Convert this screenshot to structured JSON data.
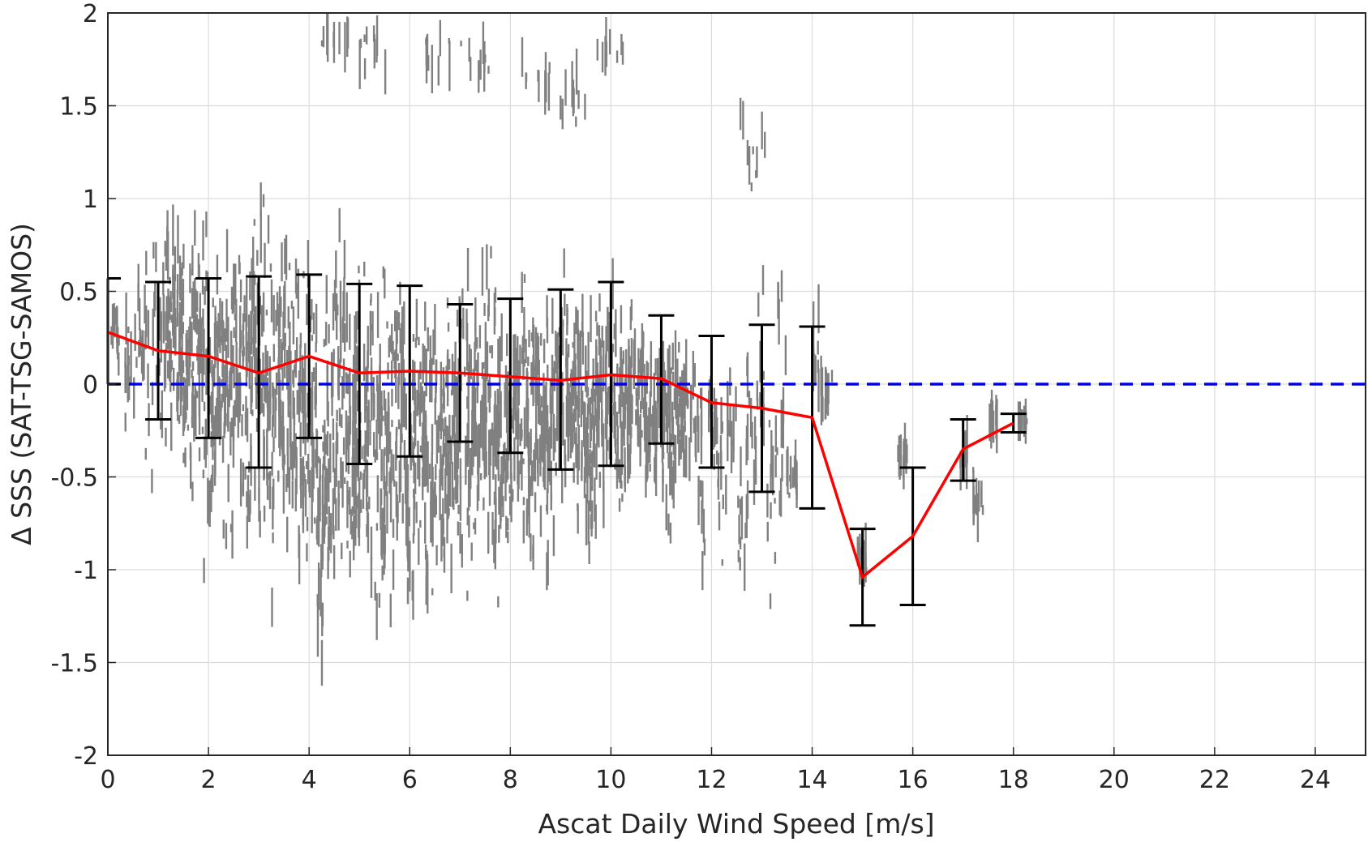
{
  "chart_data": {
    "type": "scatter",
    "title": "",
    "xlabel": "Ascat Daily Wind Speed [m/s]",
    "ylabel": "Δ SSS (SAT-TSG-SAMOS)",
    "xlim": [
      0,
      25
    ],
    "ylim": [
      -2,
      2
    ],
    "xticks": [
      0,
      2,
      4,
      6,
      8,
      10,
      12,
      14,
      16,
      18,
      20,
      22,
      24
    ],
    "yticks": [
      -2,
      -1.5,
      -1,
      -0.5,
      0,
      0.5,
      1,
      1.5,
      2
    ],
    "xtick_labels": [
      "0",
      "2",
      "4",
      "6",
      "8",
      "10",
      "12",
      "14",
      "16",
      "18",
      "20",
      "22",
      "24"
    ],
    "ytick_labels": [
      "-2",
      "-1.5",
      "-1",
      "-0.5",
      "0",
      "0.5",
      "1",
      "1.5",
      "2"
    ],
    "grid": true,
    "legend": "none",
    "zero_line": {
      "y": 0,
      "color": "#0000e6",
      "style": "dashed"
    },
    "scatter_color": "#808080",
    "mean_line_color": "#ff0000",
    "errorbar_color": "#000000",
    "binned_stats": {
      "x": [
        0,
        1,
        2,
        3,
        4,
        5,
        6,
        7,
        8,
        9,
        10,
        11,
        12,
        13,
        14,
        15,
        16,
        17,
        18
      ],
      "mean": [
        0.28,
        0.18,
        0.15,
        0.06,
        0.15,
        0.06,
        0.07,
        0.06,
        0.04,
        0.02,
        0.05,
        0.03,
        -0.1,
        -0.13,
        -0.18,
        -1.04,
        -0.82,
        -0.35,
        -0.21
      ],
      "upper": [
        0.57,
        0.55,
        0.57,
        0.58,
        0.59,
        0.54,
        0.53,
        0.43,
        0.46,
        0.51,
        0.55,
        0.37,
        0.26,
        0.32,
        0.31,
        -0.78,
        -0.45,
        -0.19,
        -0.16
      ],
      "lower": [
        0.0,
        -0.19,
        -0.29,
        -0.45,
        -0.29,
        -0.43,
        -0.39,
        -0.31,
        -0.37,
        -0.46,
        -0.44,
        -0.32,
        -0.45,
        -0.58,
        -0.67,
        -1.3,
        -1.19,
        -0.52,
        -0.26
      ]
    },
    "scatter_columns": [
      [
        0.15,
        0.0,
        0.5
      ],
      [
        0.4,
        -0.5,
        0.6
      ],
      [
        0.6,
        -0.2,
        0.8
      ],
      [
        0.8,
        -1.0,
        1.0
      ],
      [
        1.0,
        -0.4,
        0.9
      ],
      [
        1.2,
        -0.5,
        1.2
      ],
      [
        1.4,
        -0.6,
        1.1
      ],
      [
        1.6,
        -0.8,
        1.0
      ],
      [
        1.8,
        -0.7,
        1.1
      ],
      [
        2.0,
        -1.2,
        1.0
      ],
      [
        2.2,
        -0.9,
        1.1
      ],
      [
        2.4,
        -1.1,
        0.9
      ],
      [
        2.6,
        -0.8,
        1.0
      ],
      [
        2.8,
        -1.3,
        1.3
      ],
      [
        3.0,
        -1.0,
        1.5
      ],
      [
        3.2,
        -1.4,
        1.0
      ],
      [
        3.4,
        -1.1,
        0.9
      ],
      [
        3.6,
        -1.2,
        1.0
      ],
      [
        3.8,
        -1.5,
        0.9
      ],
      [
        4.0,
        -1.3,
        1.0
      ],
      [
        4.2,
        -1.9,
        0.9
      ],
      [
        4.4,
        -1.4,
        0.8
      ],
      [
        4.6,
        -1.2,
        1.0
      ],
      [
        4.8,
        -1.5,
        0.9
      ],
      [
        5.0,
        -1.1,
        0.8
      ],
      [
        5.2,
        -1.3,
        0.7
      ],
      [
        5.4,
        -1.5,
        0.8
      ],
      [
        5.6,
        -1.4,
        0.9
      ],
      [
        5.8,
        -1.2,
        1.0
      ],
      [
        6.0,
        -1.5,
        0.7
      ],
      [
        6.2,
        -1.3,
        0.8
      ],
      [
        6.4,
        -1.8,
        0.9
      ],
      [
        6.6,
        -1.5,
        0.8
      ],
      [
        6.8,
        -1.3,
        0.7
      ],
      [
        7.0,
        -1.2,
        0.8
      ],
      [
        7.2,
        -1.4,
        0.7
      ],
      [
        7.4,
        -1.0,
        0.8
      ],
      [
        7.6,
        -1.2,
        0.9
      ],
      [
        7.8,
        -1.5,
        0.8
      ],
      [
        8.0,
        -1.1,
        0.7
      ],
      [
        8.2,
        -1.0,
        0.7
      ],
      [
        8.4,
        -1.2,
        0.8
      ],
      [
        8.6,
        -0.9,
        0.6
      ],
      [
        8.8,
        -1.3,
        0.7
      ],
      [
        9.0,
        -1.0,
        0.7
      ],
      [
        9.2,
        -0.8,
        0.6
      ],
      [
        9.4,
        -0.9,
        0.7
      ],
      [
        9.6,
        -1.2,
        0.5
      ],
      [
        9.8,
        -0.8,
        0.6
      ],
      [
        10.0,
        -0.7,
        0.7
      ],
      [
        10.2,
        -0.9,
        0.5
      ],
      [
        10.4,
        -0.8,
        0.6
      ],
      [
        10.6,
        -0.7,
        0.5
      ],
      [
        10.8,
        -0.9,
        0.4
      ],
      [
        11.0,
        -0.6,
        0.4
      ],
      [
        11.2,
        -1.0,
        0.5
      ],
      [
        11.4,
        -0.6,
        0.3
      ],
      [
        11.6,
        -0.7,
        0.3
      ],
      [
        11.8,
        -1.2,
        0.3
      ],
      [
        12.0,
        -0.6,
        0.2
      ],
      [
        12.2,
        -1.3,
        0.2
      ],
      [
        12.4,
        -0.7,
        0.3
      ],
      [
        12.6,
        -1.4,
        0.2
      ],
      [
        12.8,
        -0.9,
        0.5
      ],
      [
        13.0,
        -0.8,
        0.8
      ],
      [
        13.2,
        -1.3,
        0.2
      ],
      [
        13.4,
        -1.0,
        0.9
      ],
      [
        13.6,
        -0.7,
        -0.3
      ],
      [
        14.1,
        -0.3,
        0.5
      ],
      [
        14.3,
        -0.2,
        0.1
      ],
      [
        15.0,
        -1.1,
        -0.8
      ],
      [
        15.8,
        -0.5,
        -0.3
      ],
      [
        17.0,
        -0.5,
        -0.2
      ],
      [
        17.3,
        -0.8,
        -0.4
      ],
      [
        17.6,
        -0.3,
        -0.1
      ],
      [
        18.2,
        -0.2,
        -0.2
      ]
    ],
    "scatter_outlier_clusters": [
      [
        4.5,
        1.7,
        2.0
      ],
      [
        5.3,
        1.6,
        2.0
      ],
      [
        6.5,
        1.5,
        2.0
      ],
      [
        7.3,
        1.6,
        1.9
      ],
      [
        8.5,
        1.4,
        1.9
      ],
      [
        9.2,
        1.3,
        1.8
      ],
      [
        10.0,
        1.7,
        1.9
      ],
      [
        12.8,
        0.8,
        2.0
      ]
    ]
  }
}
